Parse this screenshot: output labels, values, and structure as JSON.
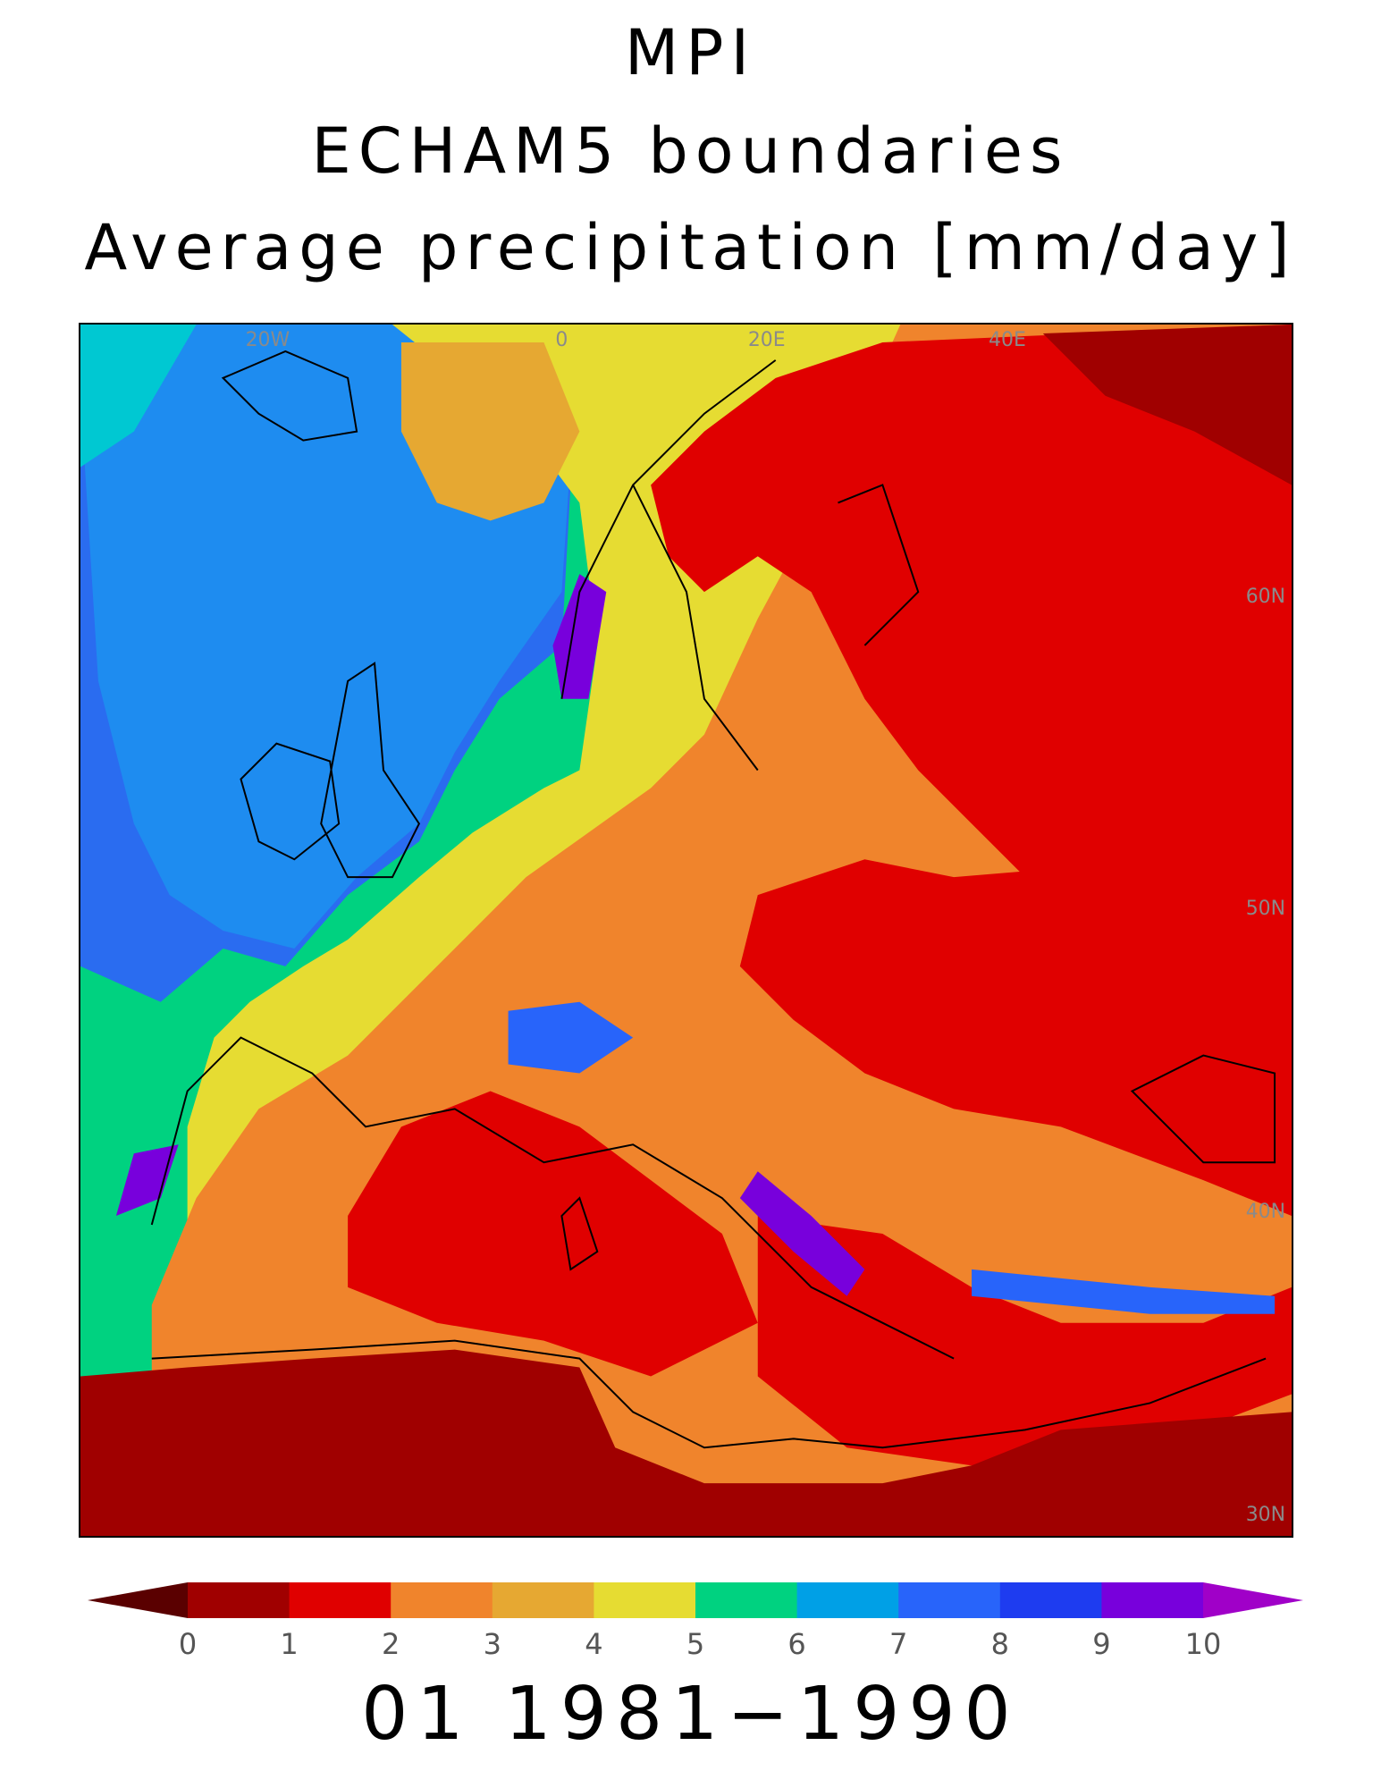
{
  "titles": {
    "line1": "MPI",
    "line2": "ECHAM5 boundaries",
    "line3": "Average precipitation [mm/day]"
  },
  "map": {
    "grid_labels": {
      "lon": [
        "20W",
        "0",
        "20E",
        "40E"
      ],
      "lat": [
        "60N",
        "50N",
        "40N",
        "30N"
      ]
    }
  },
  "colorbar": {
    "ticks": [
      "0",
      "1",
      "2",
      "3",
      "4",
      "5",
      "6",
      "7",
      "8",
      "9",
      "10"
    ],
    "colors": {
      "below": "#5a0000",
      "bins": [
        "#a00000",
        "#e00000",
        "#f0842c",
        "#e6a832",
        "#e6dc32",
        "#00d280",
        "#00a0e6",
        "#2864fa",
        "#1e3cf0",
        "#7800dc"
      ],
      "above": "#a000c8"
    }
  },
  "period": "01 1981−1990"
}
